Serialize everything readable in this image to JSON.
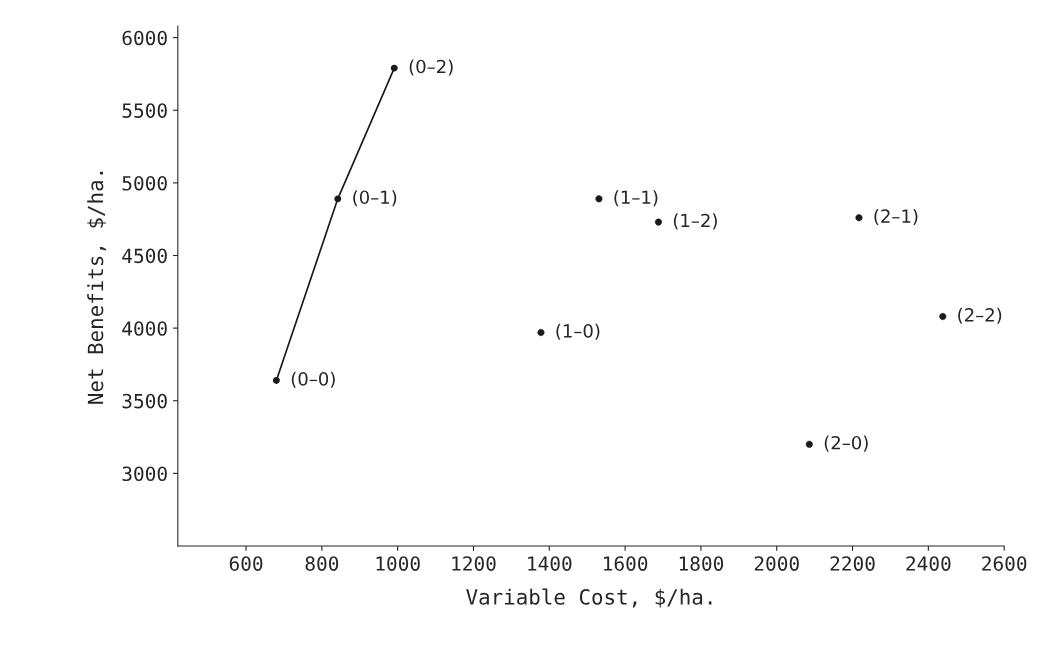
{
  "chart_data": {
    "type": "scatter",
    "xlabel": "Variable Cost, $/ha.",
    "ylabel": "Net Benefits, $/ha.",
    "series": [
      {
        "type": "line",
        "color": "#1a1a1a",
        "x": [
          680,
          842,
          991
        ],
        "values": [
          3640,
          4890,
          5790
        ]
      },
      {
        "color": "#1a1a1a",
        "x": [
          1378,
          1531,
          1688,
          2086,
          2217,
          2438
        ],
        "values": [
          3970,
          4890,
          4730,
          3200,
          4760,
          4080
        ]
      }
    ],
    "marker": "circle",
    "line_style": "solid",
    "xlim": [
      420,
      2600
    ],
    "xticks": [
      600,
      800,
      1000,
      1200,
      1400,
      1600,
      1800,
      2000,
      2200,
      2400,
      2600
    ],
    "ylim": [
      2500,
      6080
    ],
    "yticks": [
      3000,
      3500,
      4000,
      4500,
      5000,
      5500,
      6000
    ],
    "grid": false,
    "annotations": [
      {
        "text": "(0–0)",
        "x": 680,
        "y": 3640
      },
      {
        "text": "(0–1)",
        "x": 842,
        "y": 4890
      },
      {
        "text": "(0–2)",
        "x": 991,
        "y": 5790
      },
      {
        "text": "(1–0)",
        "x": 1378,
        "y": 3970
      },
      {
        "text": "(1–1)",
        "x": 1531,
        "y": 4890
      },
      {
        "text": "(1–2)",
        "x": 1688,
        "y": 4730
      },
      {
        "text": "(2–0)",
        "x": 2086,
        "y": 3200
      },
      {
        "text": "(2–1)",
        "x": 2217,
        "y": 4760
      },
      {
        "text": "(2–2)",
        "x": 2438,
        "y": 4080
      }
    ]
  }
}
